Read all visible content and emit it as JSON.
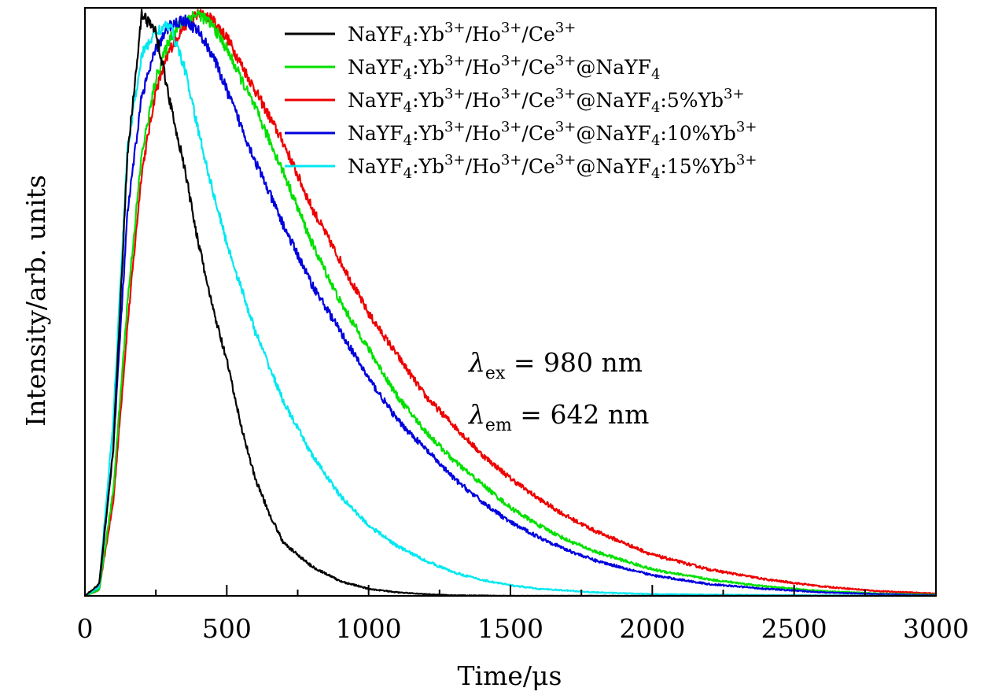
{
  "chart_data": {
    "type": "line",
    "title": "",
    "xlabel": "Time/μs",
    "ylabel": "Intensity/arb. units",
    "xlim": [
      0,
      3000
    ],
    "ylim": [
      0,
      1
    ],
    "xticks": [
      "0",
      "500",
      "1000",
      "1500",
      "2000",
      "2500",
      "3000"
    ],
    "x_values": [
      0,
      500,
      1000,
      1500,
      2000,
      2500,
      3000
    ],
    "legend_position": "top-right",
    "grid": false,
    "annotations": [
      {
        "symbol": "λ",
        "subscript": "ex",
        "text": " = 980 nm"
      },
      {
        "symbol": "λ",
        "subscript": "em",
        "text": " = 642 nm"
      }
    ],
    "series": [
      {
        "name": "NaYF4:Yb3+/Ho3+/Ce3+",
        "legend": {
          "p1": "NaYF",
          "s1": "4",
          "p2": ":Yb",
          "u1": "3+",
          "p3": "/Ho",
          "u2": "3+",
          "p4": "/Ce",
          "u3": "3+",
          "p5": ""
        },
        "color": "#000000",
        "x": [
          0,
          50,
          100,
          150,
          200,
          250,
          300,
          350,
          400,
          450,
          500,
          550,
          600,
          650,
          700,
          800,
          900,
          1000,
          1100,
          1200,
          1300,
          1500,
          3000
        ],
        "y": [
          0.0,
          0.02,
          0.25,
          0.75,
          0.99,
          0.96,
          0.84,
          0.73,
          0.6,
          0.49,
          0.4,
          0.29,
          0.2,
          0.14,
          0.09,
          0.05,
          0.025,
          0.012,
          0.006,
          0.003,
          0.001,
          0.0,
          0.0
        ]
      },
      {
        "name": "NaYF4:Yb3+/Ho3+/Ce3+@NaYF4",
        "legend": {
          "p1": "NaYF",
          "s1": "4",
          "p2": ":Yb",
          "u1": "3+",
          "p3": "/Ho",
          "u2": "3+",
          "p4": "/Ce",
          "u3": "3+",
          "p5": "@NaYF",
          "s2": "4"
        },
        "color": "#00e000",
        "x": [
          0,
          50,
          100,
          150,
          200,
          250,
          300,
          350,
          400,
          450,
          500,
          600,
          700,
          800,
          900,
          1000,
          1100,
          1200,
          1300,
          1400,
          1500,
          1600,
          1700,
          1800,
          2000,
          2200,
          2400,
          2600,
          2800,
          3000
        ],
        "y": [
          0.0,
          0.01,
          0.18,
          0.5,
          0.75,
          0.88,
          0.95,
          0.98,
          0.99,
          0.97,
          0.93,
          0.83,
          0.72,
          0.6,
          0.5,
          0.42,
          0.34,
          0.28,
          0.23,
          0.19,
          0.15,
          0.12,
          0.095,
          0.075,
          0.045,
          0.028,
          0.016,
          0.008,
          0.004,
          0.002
        ]
      },
      {
        "name": "NaYF4:Yb3+/Ho3+/Ce3+@NaYF4:5%Yb3+",
        "legend": {
          "p1": "NaYF",
          "s1": "4",
          "p2": ":Yb",
          "u1": "3+",
          "p3": "/Ho",
          "u2": "3+",
          "p4": "/Ce",
          "u3": "3+",
          "p5": "@NaYF",
          "s2": "4",
          "p6": ":5%Yb",
          "u4": "3+"
        },
        "color": "#ee0000",
        "x": [
          0,
          50,
          100,
          150,
          200,
          250,
          300,
          350,
          400,
          450,
          500,
          600,
          700,
          800,
          900,
          1000,
          1100,
          1200,
          1300,
          1400,
          1500,
          1600,
          1700,
          1800,
          2000,
          2200,
          2400,
          2600,
          2800,
          3000
        ],
        "y": [
          0.0,
          0.01,
          0.16,
          0.46,
          0.72,
          0.86,
          0.93,
          0.97,
          0.99,
          0.98,
          0.95,
          0.86,
          0.77,
          0.66,
          0.57,
          0.48,
          0.41,
          0.34,
          0.29,
          0.24,
          0.2,
          0.165,
          0.135,
          0.11,
          0.07,
          0.045,
          0.028,
          0.016,
          0.008,
          0.004
        ]
      },
      {
        "name": "NaYF4:Yb3+/Ho3+/Ce3+@NaYF4:10%Yb3+",
        "legend": {
          "p1": "NaYF",
          "s1": "4",
          "p2": ":Yb",
          "u1": "3+",
          "p3": "/Ho",
          "u2": "3+",
          "p4": "/Ce",
          "u3": "3+",
          "p5": "@NaYF",
          "s2": "4",
          "p6": ":10%Yb",
          "u4": "3+"
        },
        "color": "#0000dd",
        "x": [
          0,
          50,
          100,
          150,
          200,
          250,
          300,
          350,
          400,
          450,
          500,
          600,
          700,
          800,
          900,
          1000,
          1100,
          1200,
          1300,
          1400,
          1500,
          1600,
          1700,
          1800,
          2000,
          2200,
          2400,
          2600,
          2800,
          3000
        ],
        "y": [
          0.0,
          0.015,
          0.25,
          0.65,
          0.85,
          0.93,
          0.97,
          0.98,
          0.96,
          0.92,
          0.86,
          0.74,
          0.63,
          0.53,
          0.45,
          0.37,
          0.3,
          0.25,
          0.2,
          0.16,
          0.125,
          0.1,
          0.078,
          0.06,
          0.035,
          0.02,
          0.012,
          0.006,
          0.003,
          0.001
        ]
      },
      {
        "name": "NaYF4:Yb3+/Ho3+/Ce3+@NaYF4:15%Yb3+",
        "legend": {
          "p1": "NaYF",
          "s1": "4",
          "p2": ":Yb",
          "u1": "3+",
          "p3": "/Ho",
          "u2": "3+",
          "p4": "/Ce",
          "u3": "3+",
          "p5": "@NaYF",
          "s2": "4",
          "p6": ":15%Yb",
          "u4": "3+"
        },
        "color": "#00e8f0",
        "x": [
          0,
          50,
          100,
          150,
          200,
          250,
          300,
          350,
          400,
          450,
          500,
          600,
          700,
          800,
          900,
          1000,
          1100,
          1200,
          1300,
          1400,
          1500,
          1600,
          1800,
          2000,
          2500,
          3000
        ],
        "y": [
          0.0,
          0.015,
          0.3,
          0.76,
          0.92,
          0.96,
          0.97,
          0.9,
          0.79,
          0.69,
          0.6,
          0.45,
          0.33,
          0.24,
          0.17,
          0.12,
          0.085,
          0.06,
          0.04,
          0.027,
          0.018,
          0.012,
          0.006,
          0.003,
          0.001,
          0.0
        ]
      }
    ]
  }
}
